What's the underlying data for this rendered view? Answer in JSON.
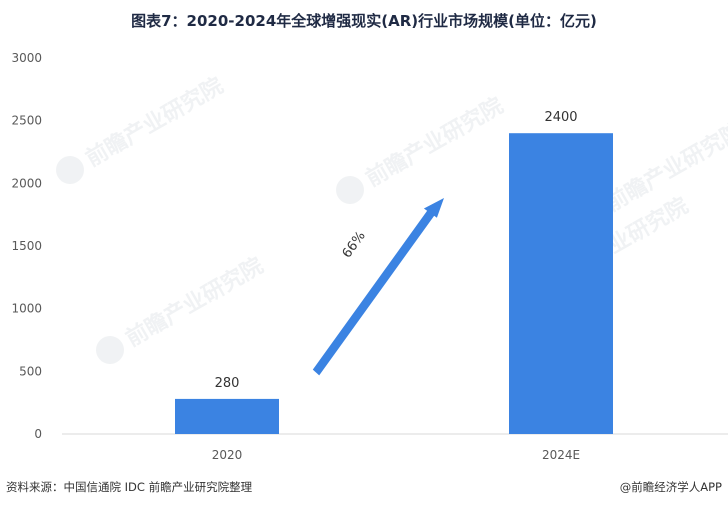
{
  "title": "图表7：2020-2024年全球增强现实(AR)行业市场规模(单位：亿元)",
  "source": "资料来源：中国信通院 IDC 前瞻产业研究院整理",
  "credit": "@前瞻经济学人APP",
  "watermark": "前瞻产业研究院",
  "chart_data": {
    "type": "bar",
    "categories": [
      "2020",
      "2024E"
    ],
    "values": [
      280,
      2400
    ],
    "ylim": [
      0,
      3000
    ],
    "yticks": [
      0,
      500,
      1000,
      1500,
      2000,
      2500,
      3000
    ],
    "grid": false,
    "annotation": "66%",
    "bar_color": "#3b83e2"
  }
}
